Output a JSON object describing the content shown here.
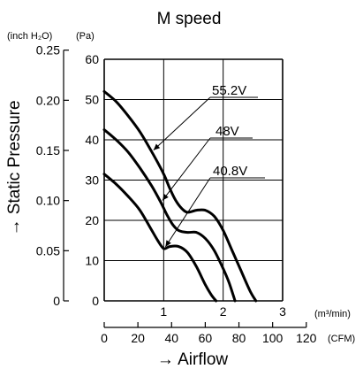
{
  "chart_data": {
    "type": "line",
    "title": "M speed",
    "ylabel": "→ Static Pressure",
    "xlabel": "→ Airflow",
    "y_units": {
      "left": "(inch H₂O)",
      "right": "(Pa)"
    },
    "x_units": {
      "top": "(m³/min)",
      "bottom": "(CFM)"
    },
    "ylim": [
      0,
      60
    ],
    "xlim": [
      0,
      3
    ],
    "grid": true,
    "y_ticks_pa": [
      "0",
      "10",
      "20",
      "30",
      "40",
      "50",
      "60"
    ],
    "y_ticks_inch": [
      "0",
      "0.05",
      "0.10",
      "0.15",
      "0.20",
      "0.25"
    ],
    "x_ticks_m3min": [
      "1",
      "2",
      "3"
    ],
    "x_ticks_cfm": [
      "0",
      "20",
      "40",
      "60",
      "80",
      "100",
      "120"
    ],
    "series": [
      {
        "name": "55.2V",
        "x": [
          0,
          0.2,
          0.4,
          0.6,
          0.8,
          1.0,
          1.1,
          1.2,
          1.3,
          1.4,
          1.55,
          1.7,
          1.85,
          2.0,
          2.15,
          2.3,
          2.45,
          2.55
        ],
        "y": [
          52,
          49.5,
          46,
          42,
          37,
          31.5,
          28,
          25,
          23,
          22,
          22.5,
          22.5,
          21,
          17.5,
          12.5,
          7.5,
          2.5,
          0
        ]
      },
      {
        "name": "48V",
        "x": [
          0,
          0.2,
          0.4,
          0.6,
          0.8,
          0.95,
          1.05,
          1.15,
          1.25,
          1.4,
          1.55,
          1.7,
          1.85,
          2.0,
          2.1,
          2.2
        ],
        "y": [
          42.5,
          40,
          37,
          33,
          28.5,
          24.5,
          21.5,
          19,
          17.5,
          17,
          17,
          15.5,
          12.5,
          8,
          4.5,
          0
        ]
      },
      {
        "name": "40.8V",
        "x": [
          0,
          0.2,
          0.4,
          0.6,
          0.8,
          0.9,
          1.0,
          1.1,
          1.25,
          1.4,
          1.55,
          1.7,
          1.8,
          1.88
        ],
        "y": [
          31.5,
          29,
          26,
          22.5,
          17.5,
          15,
          13,
          13.5,
          13.5,
          12,
          8.5,
          4,
          1.5,
          0
        ]
      }
    ]
  }
}
